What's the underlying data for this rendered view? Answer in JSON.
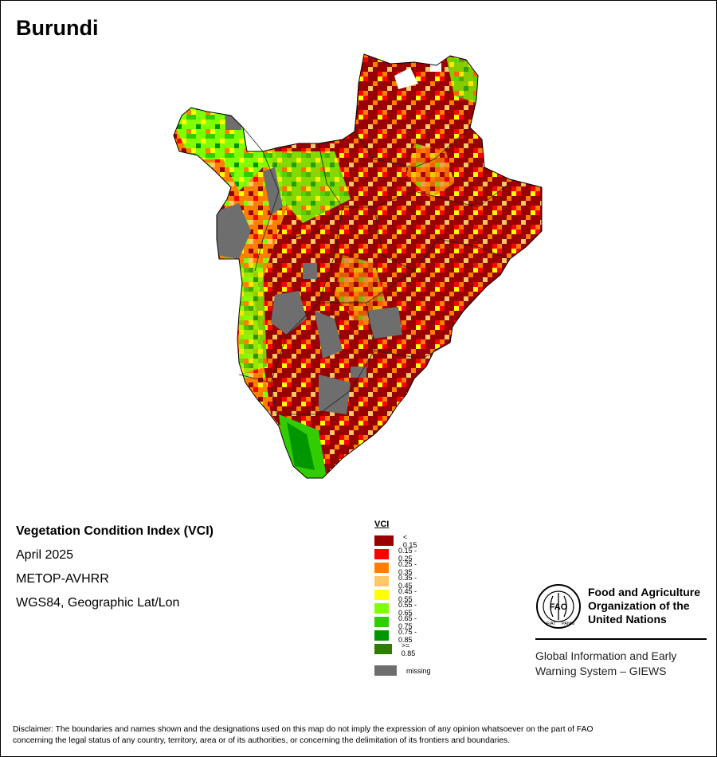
{
  "map_title": "Burundi",
  "info": {
    "index_name": "Vegetation Condition Index (VCI)",
    "date": "April 2025",
    "sensor": "METOP-AVHRR",
    "projection": "WGS84, Geographic Lat/Lon"
  },
  "legend": {
    "title": "VCI",
    "classes": [
      {
        "label": "< 0.15",
        "color": "#990000"
      },
      {
        "label": "0.15 - 0.25",
        "color": "#ff0000"
      },
      {
        "label": "0.25 - 0.35",
        "color": "#ff8000"
      },
      {
        "label": "0.35 - 0.45",
        "color": "#ffc864"
      },
      {
        "label": "0.45 - 0.55",
        "color": "#ffff00"
      },
      {
        "label": "0.55 - 0.65",
        "color": "#7fff00"
      },
      {
        "label": "0.65 - 0.75",
        "color": "#32cd00"
      },
      {
        "label": "0.75 - 0.85",
        "color": "#009600"
      },
      {
        "label": ">= 0.85",
        "color": "#2e7d00"
      }
    ],
    "missing": {
      "label": "missing",
      "color": "#6e6e6e"
    }
  },
  "organization": {
    "name_line1": "Food and Agriculture",
    "name_line2": "Organization of the",
    "name_line3": "United Nations",
    "system_line1": "Global Information and Early",
    "system_line2": "Warning System – GIEWS",
    "logo_text": "FAO",
    "logo_motto_left": "FIAT",
    "logo_motto_right": "PANIS"
  },
  "disclaimer": {
    "line1": "Disclaimer: The boundaries and names shown and the designations used on this map do not imply the expression of any opinion whatsoever on the part of FAO",
    "line2": "concerning the legal status of any country, territory, area or of its authorities, or concerning the delimitation of its frontiers and boundaries."
  }
}
